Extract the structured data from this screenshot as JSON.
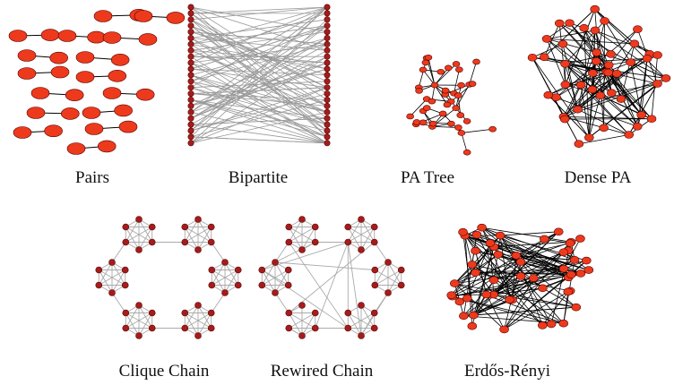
{
  "panels": [
    {
      "label": "Pairs"
    },
    {
      "label": "Bipartite"
    },
    {
      "label": "PA Tree"
    },
    {
      "label": "Dense PA"
    },
    {
      "label": "Clique Chain"
    },
    {
      "label": "Rewired Chain"
    },
    {
      "label": "Erdős-Rényi"
    }
  ]
}
